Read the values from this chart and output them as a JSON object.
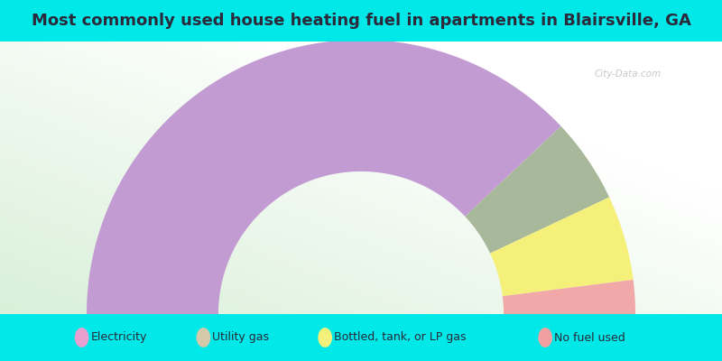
{
  "title": "Most commonly used house heating fuel in apartments in Blairsville, GA",
  "title_color": "#2a2a3a",
  "segments": [
    {
      "label": "Electricity",
      "value": 76,
      "color": "#c39bd3"
    },
    {
      "label": "Utility gas",
      "value": 10,
      "color": "#a8b89a"
    },
    {
      "label": "Bottled, tank, or LP gas",
      "value": 10,
      "color": "#f5f07a"
    },
    {
      "label": "No fuel used",
      "value": 4,
      "color": "#f1a8a8"
    }
  ],
  "legend_marker_colors": [
    "#e8a0d0",
    "#d4c9a8",
    "#f5f07a",
    "#f0a0a0"
  ],
  "watermark": "City-Data.com",
  "cyan_color": "#00e8e8",
  "bg_green_light": [
    0.85,
    0.94,
    0.85
  ],
  "bg_white": [
    1.0,
    1.0,
    1.0
  ],
  "title_fontsize": 13,
  "legend_fontsize": 9
}
